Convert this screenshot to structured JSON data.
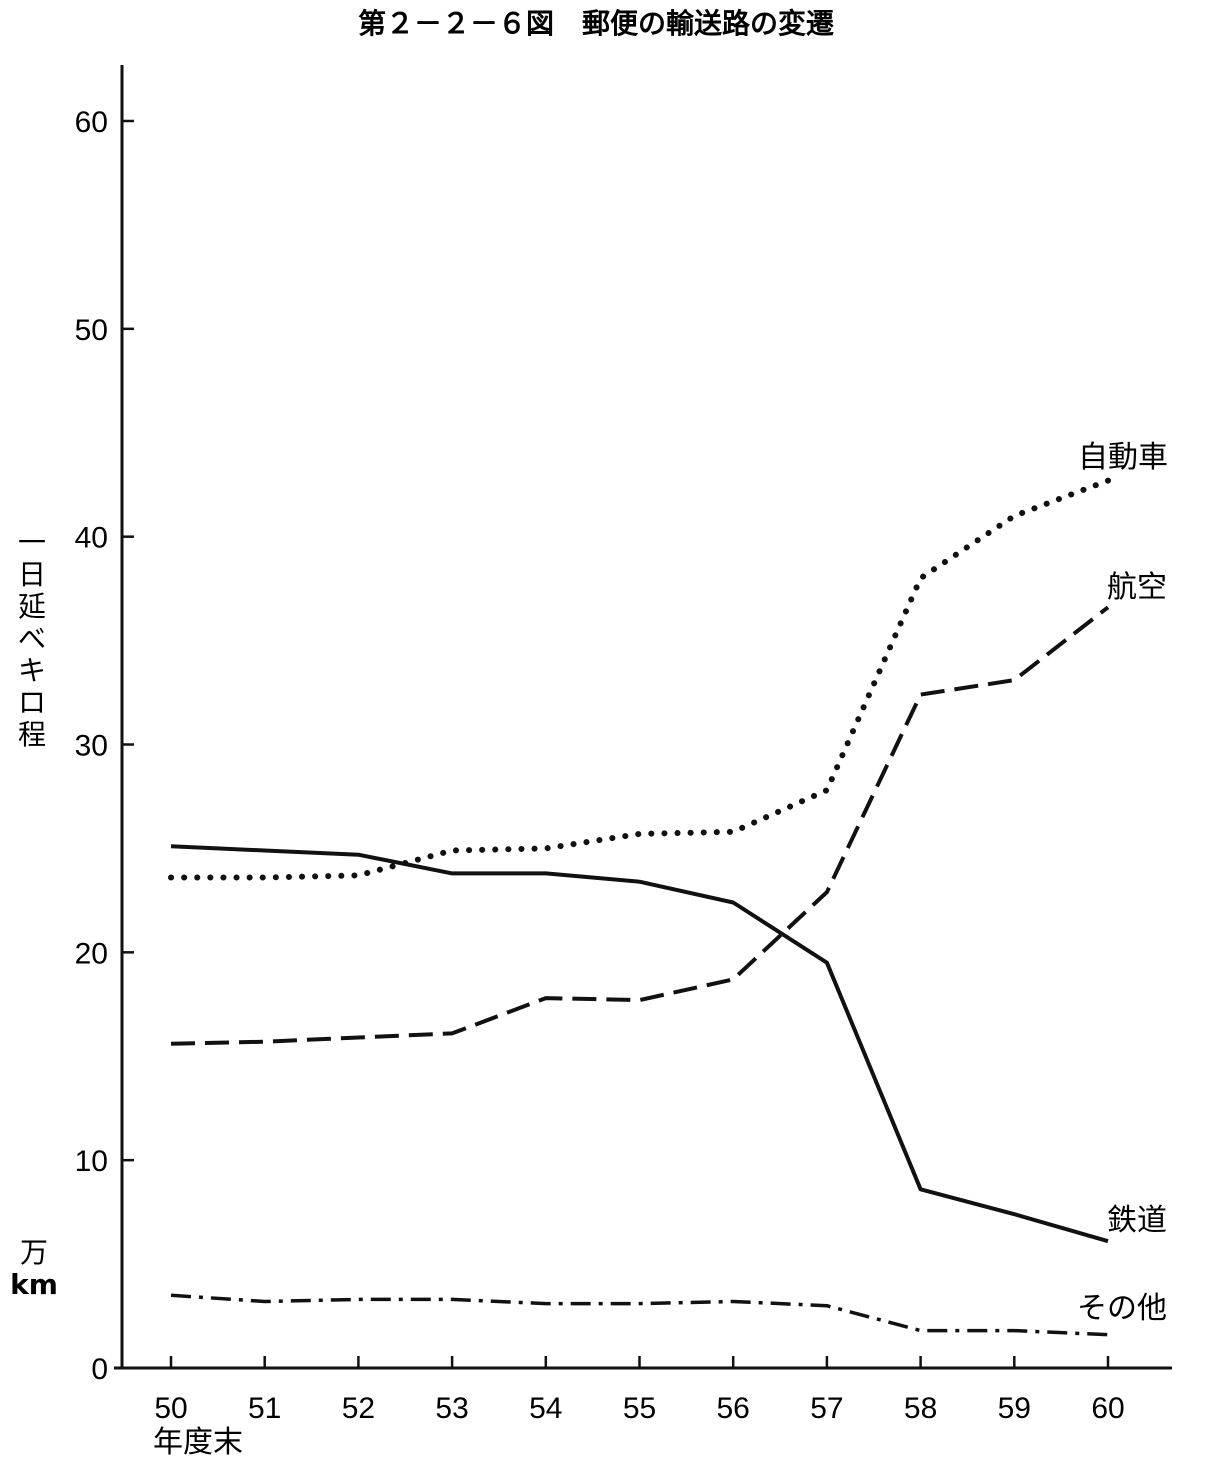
{
  "chart_data": {
    "type": "line",
    "title": "第２－２－６図　郵便の輸送路の変遷",
    "xlabel": "年度末",
    "ylabel": [
      "一",
      "日",
      "延",
      "べ",
      "キ",
      "ロ",
      "程"
    ],
    "yunit": [
      "万",
      "km"
    ],
    "categories": [
      "50",
      "51",
      "52",
      "53",
      "54",
      "55",
      "56",
      "57",
      "58",
      "59",
      "60"
    ],
    "yticks": [
      "0",
      "10",
      "20",
      "30",
      "40",
      "50",
      "60"
    ],
    "ylim": [
      0,
      60
    ],
    "grid": false,
    "series": [
      {
        "name": "自動車",
        "style": "dotted",
        "values": [
          23.6,
          23.6,
          23.7,
          24.9,
          25.0,
          25.7,
          25.8,
          27.8,
          38.0,
          41.0,
          42.7
        ]
      },
      {
        "name": "航空",
        "style": "dashed",
        "values": [
          15.6,
          15.7,
          15.9,
          16.1,
          17.8,
          17.7,
          18.7,
          22.9,
          32.4,
          33.1,
          36.6
        ]
      },
      {
        "name": "鉄道",
        "style": "solid",
        "values": [
          25.1,
          24.9,
          24.7,
          23.8,
          23.8,
          23.4,
          22.4,
          19.5,
          8.6,
          7.4,
          6.1
        ]
      },
      {
        "name": "その他",
        "style": "dashdot",
        "values": [
          3.5,
          3.2,
          3.3,
          3.3,
          3.1,
          3.1,
          3.2,
          3.0,
          1.8,
          1.8,
          1.6
        ]
      }
    ]
  }
}
